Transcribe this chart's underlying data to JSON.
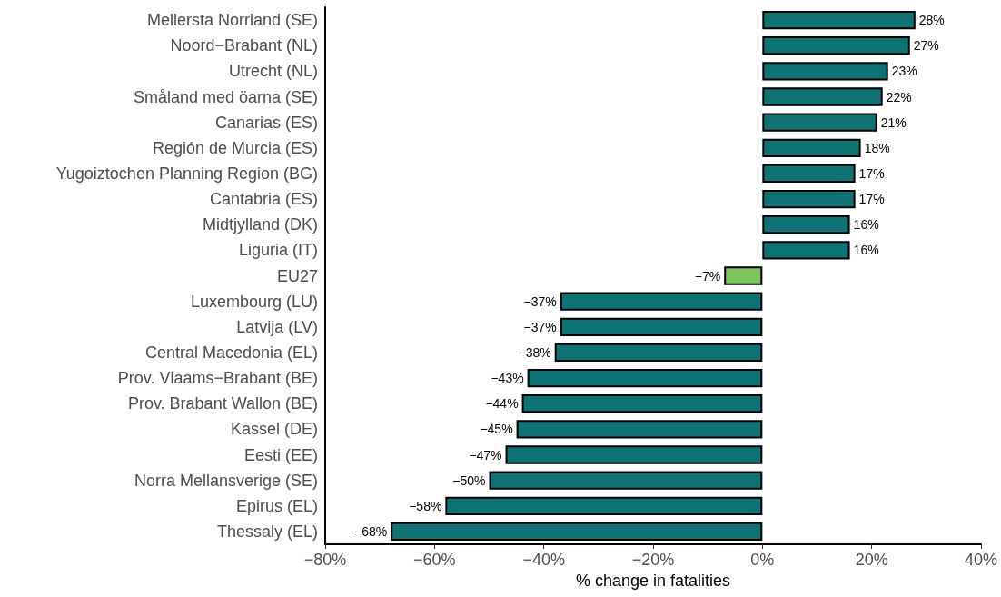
{
  "chart_data": {
    "type": "bar",
    "orientation": "horizontal",
    "xlabel": "% change in fatalities",
    "categories": [
      "Mellersta Norrland (SE)",
      "Noord−Brabant (NL)",
      "Utrecht (NL)",
      "Småland med öarna (SE)",
      "Canarias (ES)",
      "Región de Murcia (ES)",
      "Yugoiztochen Planning Region (BG)",
      "Cantabria (ES)",
      "Midtjylland (DK)",
      "Liguria (IT)",
      "EU27",
      "Luxembourg (LU)",
      "Latvija (LV)",
      "Central Macedonia (EL)",
      "Prov. Vlaams−Brabant (BE)",
      "Prov. Brabant Wallon (BE)",
      "Kassel (DE)",
      "Eesti (EE)",
      "Norra Mellansverige (SE)",
      "Epirus (EL)",
      "Thessaly (EL)"
    ],
    "values": [
      28,
      27,
      23,
      22,
      21,
      18,
      17,
      17,
      16,
      16,
      -7,
      -37,
      -37,
      -38,
      -43,
      -44,
      -45,
      -47,
      -50,
      -58,
      -68
    ],
    "value_labels": [
      "28%",
      "27%",
      "23%",
      "22%",
      "21%",
      "18%",
      "17%",
      "17%",
      "16%",
      "16%",
      "−7%",
      "−37%",
      "−37%",
      "−38%",
      "−43%",
      "−44%",
      "−45%",
      "−47%",
      "−50%",
      "−58%",
      "−68%"
    ],
    "colors": [
      "#0d7373",
      "#0d7373",
      "#0d7373",
      "#0d7373",
      "#0d7373",
      "#0d7373",
      "#0d7373",
      "#0d7373",
      "#0d7373",
      "#0d7373",
      "#7ac65c",
      "#0d7373",
      "#0d7373",
      "#0d7373",
      "#0d7373",
      "#0d7373",
      "#0d7373",
      "#0d7373",
      "#0d7373",
      "#0d7373",
      "#0d7373"
    ],
    "xlim": [
      -80,
      40
    ],
    "xticks": [
      {
        "value": -80,
        "label": "−80%"
      },
      {
        "value": -60,
        "label": "−60%"
      },
      {
        "value": -40,
        "label": "−40%"
      },
      {
        "value": -20,
        "label": "−20%"
      },
      {
        "value": 0,
        "label": "0%"
      },
      {
        "value": 20,
        "label": "20%"
      },
      {
        "value": 40,
        "label": "40%"
      }
    ]
  }
}
